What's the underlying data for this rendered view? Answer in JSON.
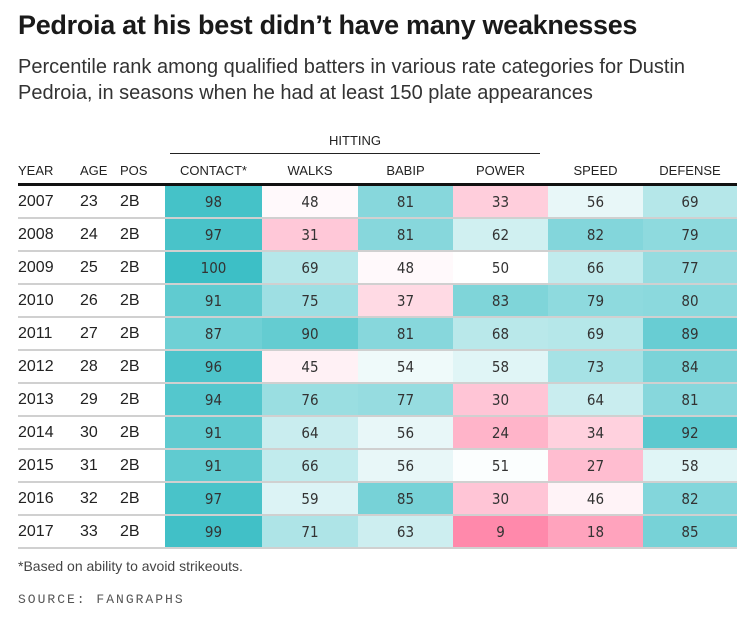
{
  "title": "Pedroia at his best didn’t have many weaknesses",
  "subtitle": "Percentile rank among qualified batters in various rate categories for Dustin Pedroia, in seasons when he had at least 150 plate appearances",
  "group_label": "HITTING",
  "footnote": "*Based on ability to avoid strikeouts.",
  "source": "SOURCE: FANGRAPHS",
  "colors": {
    "high": "#3dbfc6",
    "mid": "#ffffff",
    "low": "#ff6f98"
  },
  "chart_data": {
    "type": "table",
    "columns": [
      "YEAR",
      "AGE",
      "POS",
      "CONTACT*",
      "WALKS",
      "BABIP",
      "POWER",
      "SPEED",
      "DEFENSE"
    ],
    "rows": [
      [
        "2007",
        "23",
        "2B",
        98,
        48,
        81,
        33,
        56,
        69
      ],
      [
        "2008",
        "24",
        "2B",
        97,
        31,
        81,
        62,
        82,
        79
      ],
      [
        "2009",
        "25",
        "2B",
        100,
        69,
        48,
        50,
        66,
        77
      ],
      [
        "2010",
        "26",
        "2B",
        91,
        75,
        37,
        83,
        79,
        80
      ],
      [
        "2011",
        "27",
        "2B",
        87,
        90,
        81,
        68,
        69,
        89
      ],
      [
        "2012",
        "28",
        "2B",
        96,
        45,
        54,
        58,
        73,
        84
      ],
      [
        "2013",
        "29",
        "2B",
        94,
        76,
        77,
        30,
        64,
        81
      ],
      [
        "2014",
        "30",
        "2B",
        91,
        64,
        56,
        24,
        34,
        92
      ],
      [
        "2015",
        "31",
        "2B",
        91,
        66,
        56,
        51,
        27,
        58
      ],
      [
        "2016",
        "32",
        "2B",
        97,
        59,
        85,
        30,
        46,
        82
      ],
      [
        "2017",
        "33",
        "2B",
        99,
        71,
        63,
        9,
        18,
        85
      ]
    ]
  }
}
